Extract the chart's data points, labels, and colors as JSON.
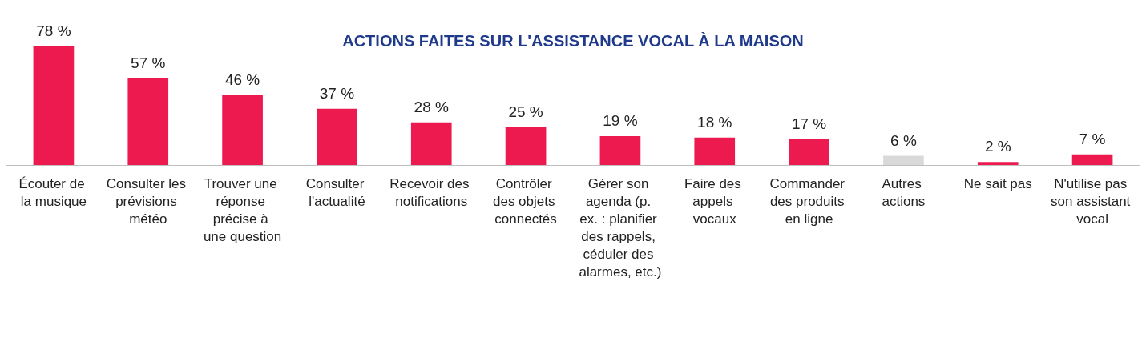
{
  "chart_data": {
    "type": "bar",
    "title": "ACTIONS FAITES SUR L'ASSISTANCE VOCAL À LA MAISON",
    "categories": [
      "Écouter de la musique",
      "Consulter les prévisions météo",
      "Trouver une réponse précise à une question",
      "Consulter l'actualité",
      "Recevoir des notifications",
      "Contrôler des objets connectés",
      "Gérer son agenda (p. ex. : planifier des rappels, céduler des alarmes, etc.)",
      "Faire des appels vocaux",
      "Commander des produits en ligne",
      "Autres actions",
      "Ne sait pas",
      "N'utilise pas son assistant vocal"
    ],
    "values": [
      78,
      57,
      46,
      37,
      28,
      25,
      19,
      18,
      17,
      6,
      2,
      7
    ],
    "colors": [
      "#ec1a4f",
      "#ec1a4f",
      "#ec1a4f",
      "#ec1a4f",
      "#ec1a4f",
      "#ec1a4f",
      "#ec1a4f",
      "#ec1a4f",
      "#ec1a4f",
      "#d9d9d9",
      "#ec1a4f",
      "#ec1a4f"
    ],
    "value_labels": [
      "78 %",
      "57 %",
      "46 %",
      "37 %",
      "28 %",
      "25 %",
      "19 %",
      "18 %",
      "17 %",
      "6 %",
      "2 %",
      "7 %"
    ]
  }
}
